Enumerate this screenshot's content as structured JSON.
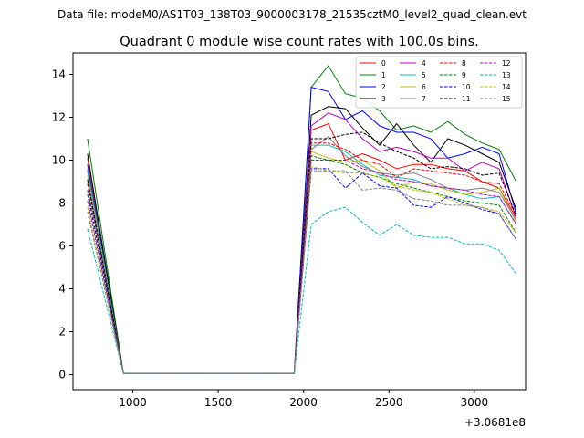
{
  "chart_data": {
    "type": "line",
    "suptitle": "Data file: modeM0/AS1T03_138T03_9000003178_21535cztM0_level2_quad_clean.evt",
    "title": "Quadrant 0 module wise count rates with 100.0s bins.",
    "xlabel": "",
    "ylabel": "",
    "x_offset_label": "+3.0681e8",
    "xlim": [
      650,
      3300
    ],
    "ylim": [
      -0.7,
      15.0
    ],
    "xticks": [
      1000,
      1500,
      2000,
      2500,
      3000
    ],
    "yticks": [
      0,
      2,
      4,
      6,
      8,
      10,
      12,
      14
    ],
    "legend_position": "top-right",
    "x": [
      735,
      945,
      1945,
      2045,
      2145,
      2245,
      2345,
      2445,
      2545,
      2645,
      2745,
      2845,
      2945,
      3045,
      3145,
      3245
    ],
    "series": [
      {
        "name": "0",
        "color": "#ff0000",
        "dash": false,
        "values": [
          10.1,
          0.05,
          0.05,
          11.4,
          11.7,
          10.0,
          10.3,
          10.0,
          9.6,
          9.8,
          9.8,
          9.6,
          9.5,
          9.0,
          8.7,
          7.3
        ]
      },
      {
        "name": "1",
        "color": "#008000",
        "dash": false,
        "values": [
          11.0,
          0.05,
          0.05,
          13.4,
          14.4,
          13.1,
          12.9,
          12.3,
          11.4,
          11.6,
          11.3,
          11.8,
          11.2,
          10.8,
          10.5,
          9.0
        ]
      },
      {
        "name": "2",
        "color": "#0000ff",
        "dash": false,
        "values": [
          9.8,
          0.05,
          0.05,
          13.4,
          13.2,
          11.9,
          12.3,
          11.6,
          11.3,
          11.3,
          11.0,
          10.1,
          10.3,
          10.6,
          10.3,
          7.5
        ]
      },
      {
        "name": "3",
        "color": "#000000",
        "dash": false,
        "values": [
          10.3,
          0.05,
          0.05,
          12.1,
          12.5,
          12.4,
          11.5,
          10.7,
          11.7,
          10.7,
          9.9,
          11.0,
          10.7,
          10.3,
          9.9,
          7.7
        ]
      },
      {
        "name": "4",
        "color": "#bf00bf",
        "dash": false,
        "values": [
          9.5,
          0.05,
          0.05,
          11.6,
          12.2,
          11.9,
          11.0,
          10.4,
          10.6,
          10.4,
          10.1,
          10.1,
          9.5,
          9.9,
          9.6,
          7.3
        ]
      },
      {
        "name": "5",
        "color": "#00bfbf",
        "dash": false,
        "values": [
          9.6,
          0.05,
          0.05,
          10.7,
          10.7,
          10.4,
          9.8,
          9.3,
          9.2,
          9.1,
          8.8,
          8.7,
          8.4,
          8.2,
          8.3,
          7.0
        ]
      },
      {
        "name": "6",
        "color": "#bfbf00",
        "dash": false,
        "values": [
          9.3,
          0.05,
          0.05,
          10.4,
          10.1,
          9.9,
          10.0,
          9.5,
          8.7,
          9.0,
          8.9,
          8.6,
          8.4,
          8.5,
          8.7,
          7.1
        ]
      },
      {
        "name": "7",
        "color": "#808080",
        "dash": false,
        "values": [
          9.1,
          0.05,
          0.05,
          10.5,
          11.1,
          10.2,
          9.7,
          9.4,
          9.3,
          9.4,
          9.1,
          8.7,
          8.6,
          8.7,
          8.5,
          7.2
        ]
      },
      {
        "name": "8",
        "color": "#ff0000",
        "dash": true,
        "values": [
          8.9,
          0.05,
          0.05,
          10.8,
          10.8,
          10.5,
          10.0,
          9.8,
          9.2,
          9.6,
          9.5,
          9.4,
          9.3,
          9.0,
          8.9,
          7.4
        ]
      },
      {
        "name": "9",
        "color": "#008000",
        "dash": true,
        "values": [
          8.4,
          0.05,
          0.05,
          10.2,
          10.0,
          9.8,
          9.4,
          9.2,
          8.9,
          8.7,
          8.5,
          8.3,
          8.1,
          8.0,
          7.9,
          6.6
        ]
      },
      {
        "name": "10",
        "color": "#0000ff",
        "dash": true,
        "values": [
          8.6,
          0.05,
          0.05,
          9.6,
          9.6,
          8.7,
          9.4,
          8.8,
          8.7,
          7.9,
          7.8,
          8.3,
          8.0,
          7.7,
          7.5,
          6.3
        ]
      },
      {
        "name": "11",
        "color": "#000000",
        "dash": true,
        "values": [
          9.1,
          0.05,
          0.05,
          11.0,
          11.0,
          11.2,
          11.3,
          10.8,
          10.4,
          10.1,
          9.6,
          9.7,
          9.6,
          9.3,
          9.4,
          7.4
        ]
      },
      {
        "name": "12",
        "color": "#bf00bf",
        "dash": true,
        "values": [
          8.1,
          0.05,
          0.05,
          10.0,
          10.0,
          10.0,
          9.6,
          9.4,
          9.1,
          9.0,
          8.8,
          8.7,
          8.6,
          8.4,
          8.3,
          7.0
        ]
      },
      {
        "name": "13",
        "color": "#00bfbf",
        "dash": true,
        "values": [
          6.8,
          0.05,
          0.05,
          7.0,
          7.6,
          7.8,
          7.1,
          6.5,
          7.0,
          6.5,
          6.4,
          6.4,
          6.1,
          6.1,
          5.8,
          4.7
        ]
      },
      {
        "name": "14",
        "color": "#bfbf00",
        "dash": true,
        "values": [
          7.8,
          0.05,
          0.05,
          9.7,
          9.5,
          9.4,
          9.4,
          9.2,
          8.8,
          8.6,
          8.5,
          8.2,
          7.9,
          7.8,
          7.6,
          6.6
        ]
      },
      {
        "name": "15",
        "color": "#808080",
        "dash": true,
        "values": [
          7.6,
          0.05,
          0.05,
          9.5,
          9.5,
          9.5,
          8.6,
          8.7,
          8.6,
          8.2,
          8.1,
          7.9,
          7.9,
          7.8,
          7.5,
          6.3
        ]
      }
    ]
  }
}
